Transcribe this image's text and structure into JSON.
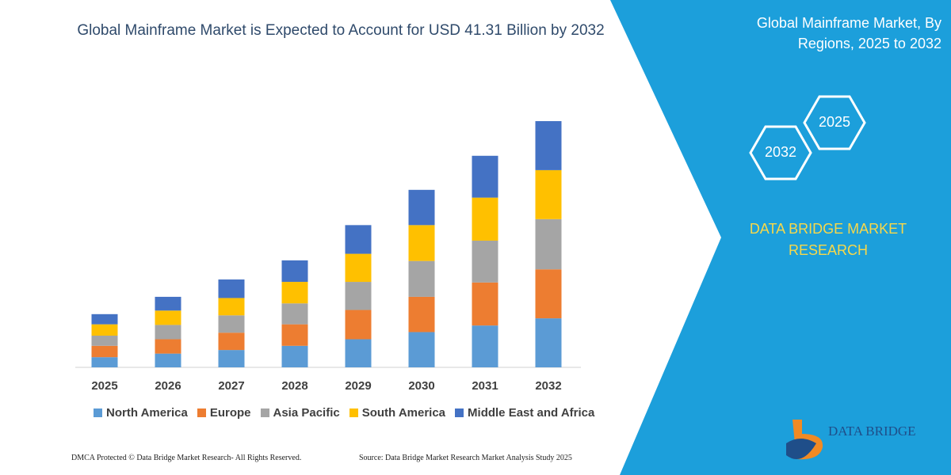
{
  "chart_data": {
    "type": "bar",
    "stacked": true,
    "title": "Global Mainframe Market is Expected to Account for USD 41.31 Billion by 2032",
    "categories": [
      "2025",
      "2026",
      "2027",
      "2028",
      "2029",
      "2030",
      "2031",
      "2032"
    ],
    "series": [
      {
        "name": "North America",
        "color": "#5b9bd5",
        "values": [
          1.7,
          2.3,
          2.9,
          3.6,
          4.7,
          5.9,
          7.0,
          8.2
        ]
      },
      {
        "name": "Europe",
        "color": "#ed7d31",
        "values": [
          1.9,
          2.4,
          2.9,
          3.6,
          4.9,
          5.9,
          7.2,
          8.2
        ]
      },
      {
        "name": "Asia Pacific",
        "color": "#a5a5a5",
        "values": [
          1.7,
          2.4,
          2.9,
          3.5,
          4.7,
          6.0,
          7.0,
          8.4
        ]
      },
      {
        "name": "South America",
        "color": "#ffc000",
        "values": [
          1.9,
          2.4,
          2.9,
          3.6,
          4.7,
          6.0,
          7.2,
          8.2
        ]
      },
      {
        "name": "Middle East and Africa",
        "color": "#4472c4",
        "values": [
          1.7,
          2.3,
          3.1,
          3.6,
          4.8,
          5.9,
          7.0,
          8.2
        ]
      }
    ]
  },
  "panel": {
    "title": "Global Mainframe Market, By Regions, 2025 to 2032",
    "hex_labels": [
      "2025",
      "2032"
    ],
    "brand": "DATA BRIDGE MARKET RESEARCH",
    "logo": "DATA BRIDGE"
  },
  "footer": {
    "left": "DMCA Protected © Data Bridge Market Research-  All Rights Reserved.",
    "right": "Source: Data Bridge Market Research  Market Analysis Study 2025"
  }
}
